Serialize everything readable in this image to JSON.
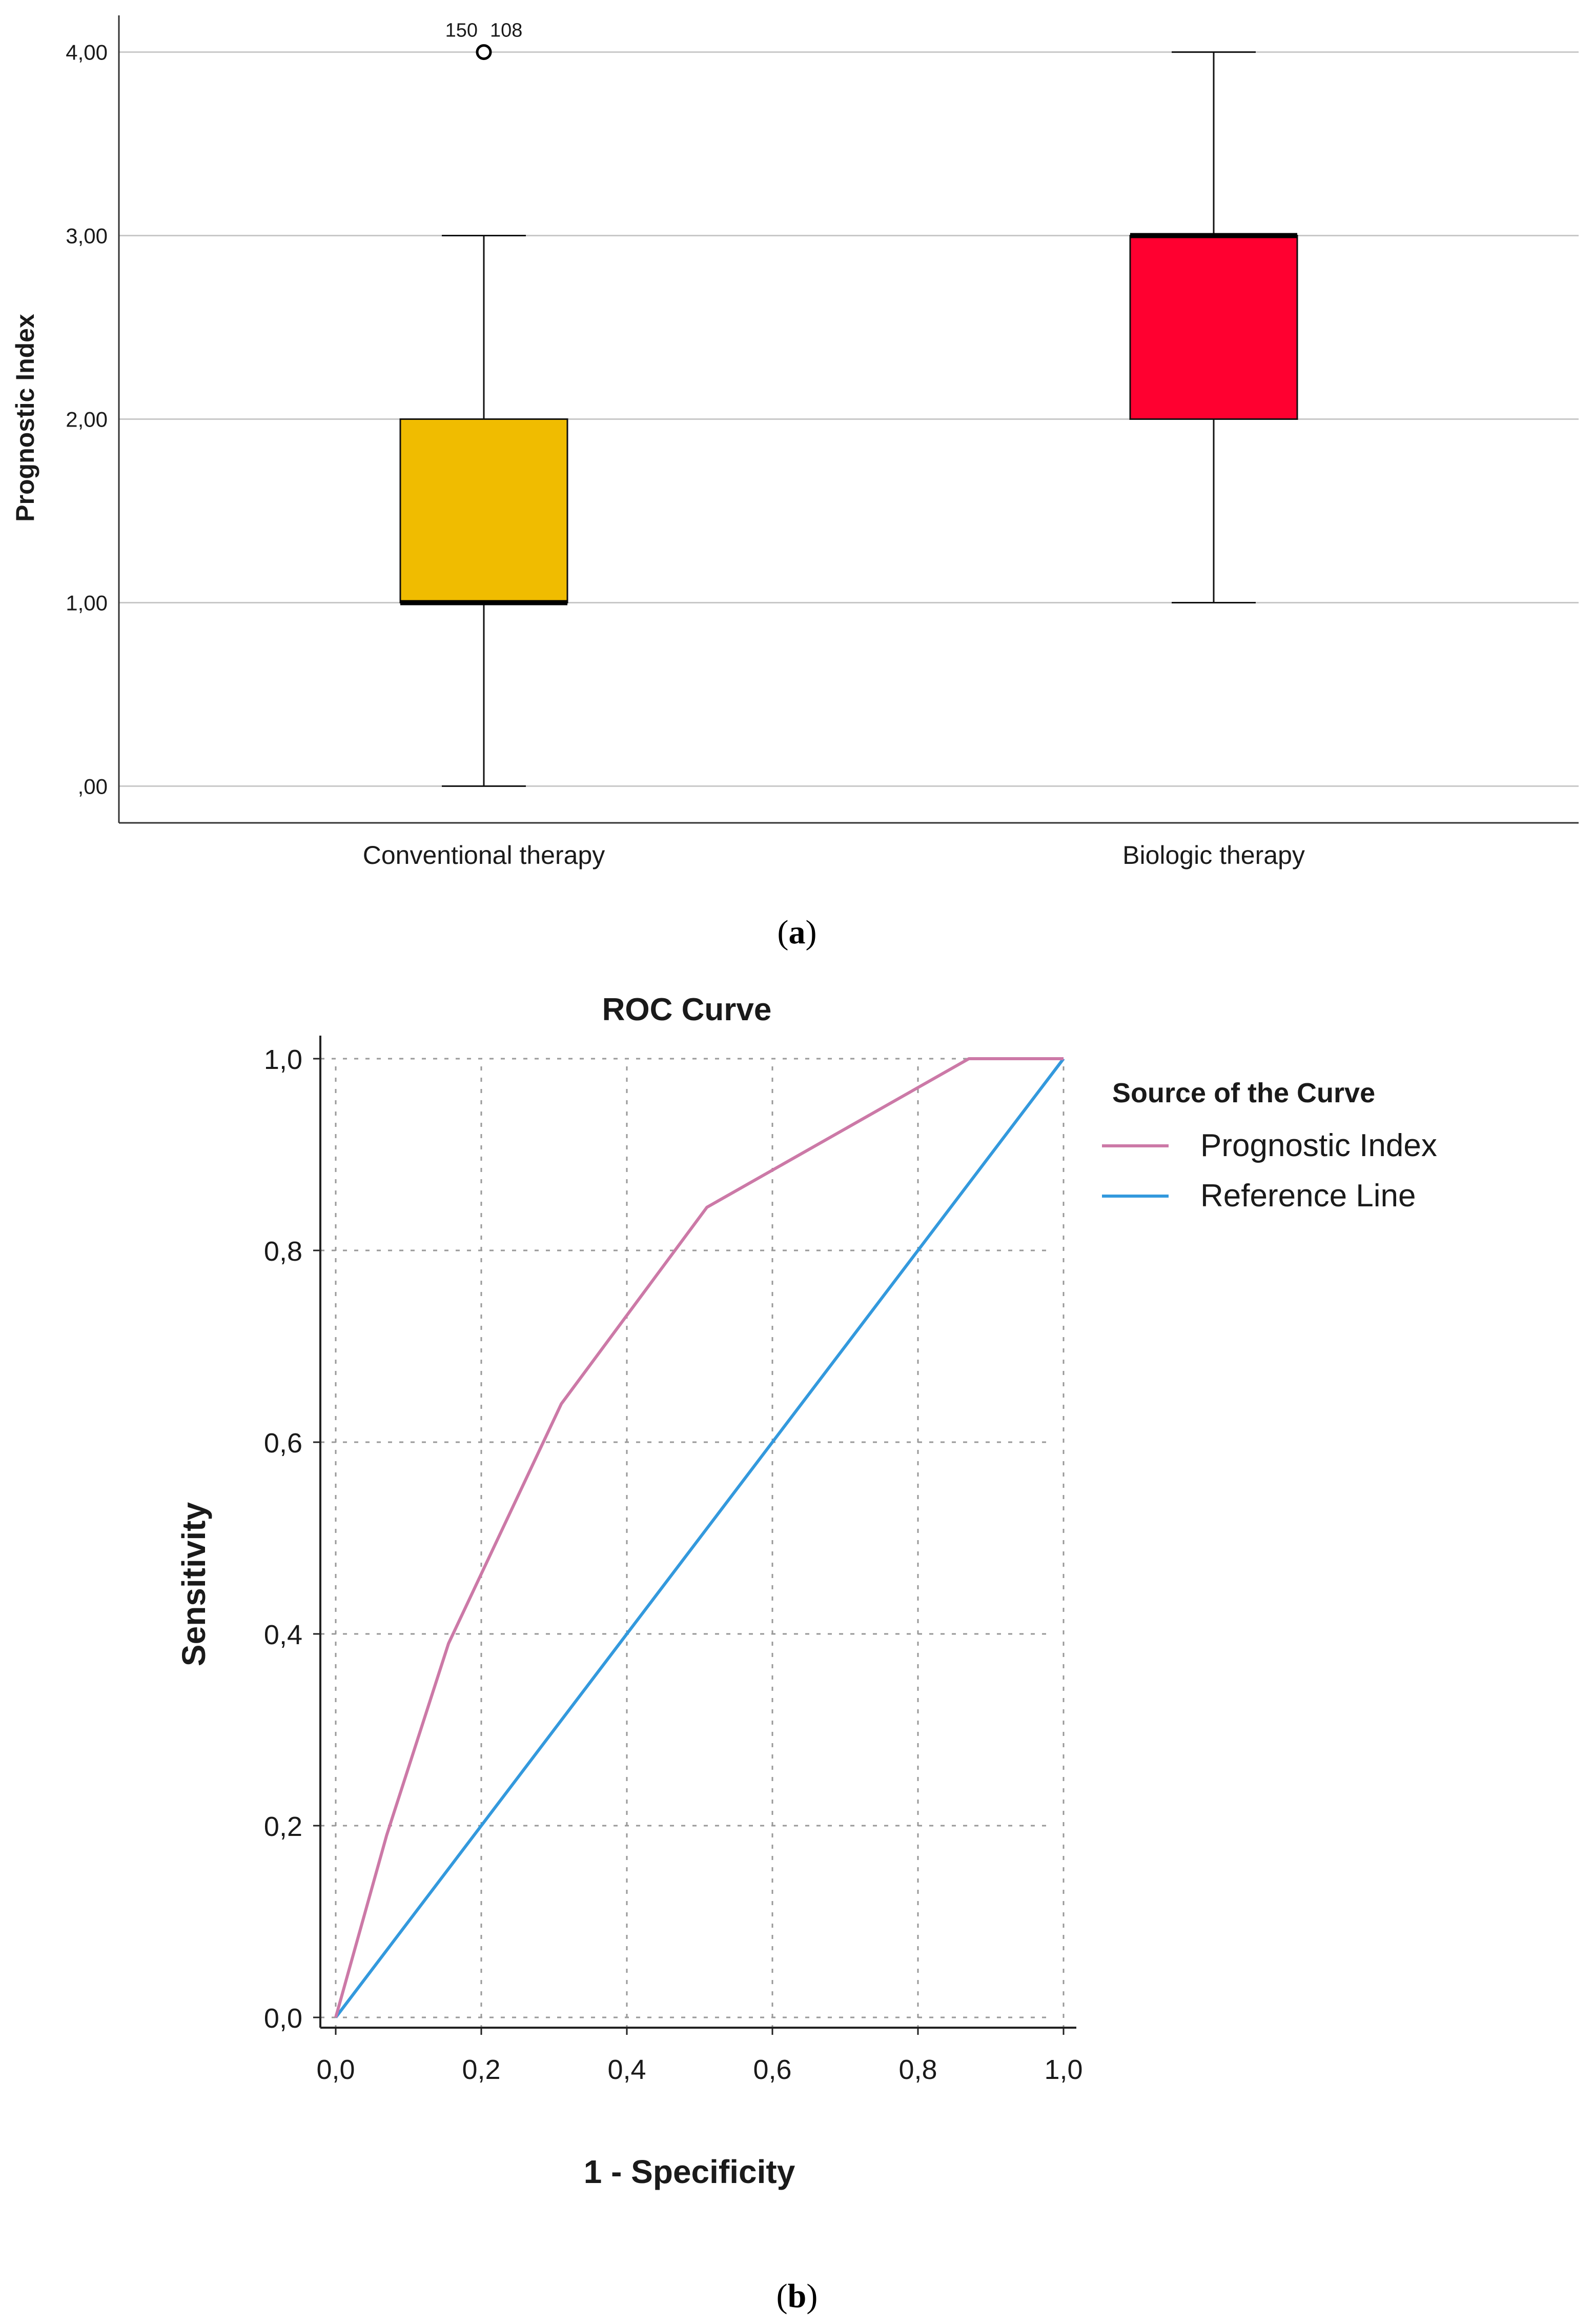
{
  "panel_labels": {
    "a": "a",
    "b": "b"
  },
  "chart_data": [
    {
      "type": "boxplot",
      "panel": "a",
      "title": "",
      "xlabel": "",
      "ylabel": "Prognostic Index",
      "ylim": [
        -0.2,
        4.2
      ],
      "yticks": [
        0,
        1,
        2,
        3,
        4
      ],
      "ytick_labels": [
        ",00",
        "1,00",
        "2,00",
        "3,00",
        "4,00"
      ],
      "grid": "horizontal",
      "categories": [
        "Conventional therapy",
        "Biologic therapy"
      ],
      "boxes": [
        {
          "category": "Conventional therapy",
          "whisker_low": 0,
          "q1": 1,
          "median": 1,
          "q3": 2,
          "whisker_high": 3,
          "color": "#F0BC00",
          "outliers": [
            {
              "value": 4,
              "labels": [
                "150",
                "108"
              ]
            }
          ]
        },
        {
          "category": "Biologic therapy",
          "whisker_low": 1,
          "q1": 2,
          "median": 3,
          "q3": 3,
          "whisker_high": 4,
          "color": "#FF0030",
          "outliers": []
        }
      ]
    },
    {
      "type": "line",
      "panel": "b",
      "title": "ROC Curve",
      "xlabel": "1 - Specificity",
      "ylabel": "Sensitivity",
      "xlim": [
        0,
        1
      ],
      "ylim": [
        0,
        1
      ],
      "xticks": [
        0,
        0.2,
        0.4,
        0.6,
        0.8,
        1.0
      ],
      "yticks": [
        0,
        0.2,
        0.4,
        0.6,
        0.8,
        1.0
      ],
      "xtick_labels": [
        "0,0",
        "0,2",
        "0,4",
        "0,6",
        "0,8",
        "1,0"
      ],
      "ytick_labels": [
        "0,0",
        "0,2",
        "0,4",
        "0,6",
        "0,8",
        "1,0"
      ],
      "grid": "dotted",
      "legend_title": "Source of the Curve",
      "legend_position": "right",
      "series": [
        {
          "name": "Prognostic Index",
          "color": "#CC79A7",
          "x": [
            0,
            0.07,
            0.155,
            0.31,
            0.51,
            0.87,
            1.0
          ],
          "y": [
            0,
            0.19,
            0.39,
            0.64,
            0.845,
            1.0,
            1.0
          ]
        },
        {
          "name": "Reference Line",
          "color": "#3399DD",
          "x": [
            0,
            1
          ],
          "y": [
            0,
            1
          ]
        }
      ]
    }
  ]
}
